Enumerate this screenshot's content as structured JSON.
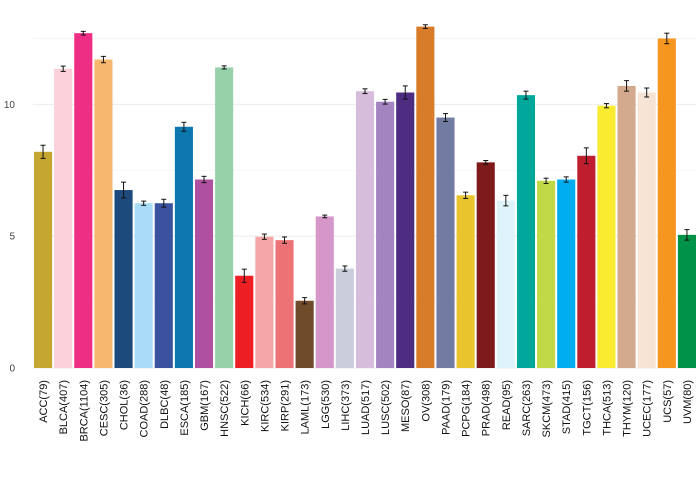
{
  "chart_data": {
    "type": "bar",
    "title": "",
    "xlabel": "",
    "ylabel": "",
    "ylim": [
      0,
      13.2
    ],
    "yticks": [
      0,
      5,
      10
    ],
    "grid": true,
    "legend": "none",
    "error_bars": true,
    "categories": [
      "ACC(79)",
      "BLCA(407)",
      "BRCA(1104)",
      "CESC(305)",
      "CHOL(36)",
      "COAD(288)",
      "DLBC(48)",
      "ESCA(185)",
      "GBM(167)",
      "HNSC(522)",
      "KICH(66)",
      "KIRC(534)",
      "KIRP(291)",
      "LAML(173)",
      "LGG(530)",
      "LIHC(373)",
      "LUAD(517)",
      "LUSC(502)",
      "MESO(87)",
      "OV(308)",
      "PAAD(179)",
      "PCPG(184)",
      "PRAD(498)",
      "READ(95)",
      "SARC(263)",
      "SKCM(473)",
      "STAD(415)",
      "TGCT(156)",
      "THCA(513)",
      "THYM(120)",
      "UCEC(177)",
      "UCS(57)",
      "UVM(80)"
    ],
    "values": [
      8.2,
      11.35,
      12.7,
      11.7,
      6.75,
      6.25,
      6.25,
      9.15,
      7.15,
      11.4,
      3.5,
      4.98,
      4.85,
      2.55,
      5.75,
      3.77,
      10.5,
      10.1,
      10.45,
      12.95,
      9.5,
      6.55,
      7.8,
      6.35,
      10.35,
      7.1,
      7.15,
      8.05,
      9.95,
      10.7,
      10.45,
      12.5,
      5.05
    ],
    "errors": [
      0.25,
      0.1,
      0.07,
      0.12,
      0.3,
      0.08,
      0.15,
      0.17,
      0.12,
      0.06,
      0.25,
      0.1,
      0.12,
      0.12,
      0.05,
      0.1,
      0.09,
      0.09,
      0.25,
      0.07,
      0.15,
      0.12,
      0.07,
      0.2,
      0.15,
      0.1,
      0.1,
      0.3,
      0.08,
      0.2,
      0.17,
      0.2,
      0.2
    ],
    "colors": [
      "#C4A631",
      "#FBD0DA",
      "#EE2D85",
      "#F6B76E",
      "#1C4A7C",
      "#A8DCF7",
      "#3A52A0",
      "#0D78B0",
      "#AF51A0",
      "#97D1A9",
      "#EE1E25",
      "#F5A6A7",
      "#ED7276",
      "#6F4B2A",
      "#D597C9",
      "#CBCDDB",
      "#D6BDDB",
      "#A384C0",
      "#4E2C81",
      "#D97C29",
      "#727BA1",
      "#E9C42D",
      "#7E1A1B",
      "#DFF3FB",
      "#00A89C",
      "#C2D947",
      "#00AEEF",
      "#BE1E2D",
      "#F9EC30",
      "#D3AA8D",
      "#F8E4D4",
      "#F7961F",
      "#009247"
    ]
  }
}
